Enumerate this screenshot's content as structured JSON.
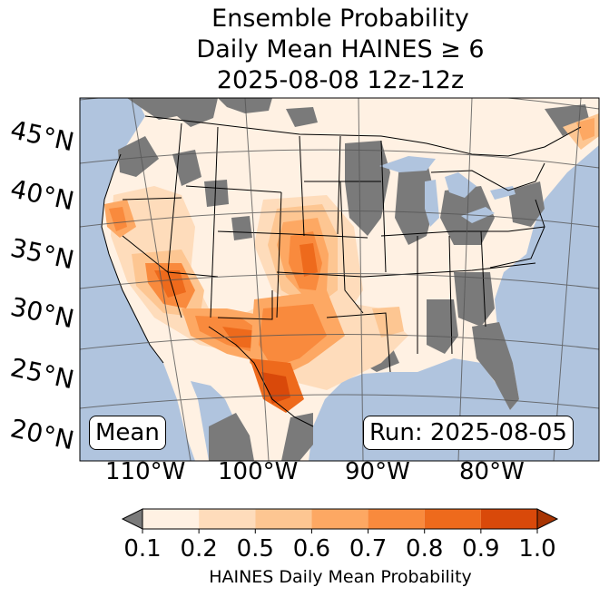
{
  "title": {
    "line1": "Ensemble Probability",
    "line2": "Daily Mean HAINES ≥ 6",
    "line3": "2025-08-08 12z-12z"
  },
  "map": {
    "lat_labels": [
      "45°N",
      "40°N",
      "35°N",
      "30°N",
      "25°N",
      "20°N"
    ],
    "lon_labels": [
      "110°W",
      "100°W",
      "90°W",
      "80°W"
    ],
    "stat_label": "Mean",
    "run_label": "Run: 2025-08-05",
    "colors": {
      "ocean": "#b0c4de",
      "missing": "#7a7a7a",
      "land_low": "#fff1e3"
    }
  },
  "colorbar": {
    "ticks": [
      "0.1",
      "0.2",
      "0.5",
      "0.6",
      "0.7",
      "0.8",
      "0.9",
      "1.0"
    ],
    "colors": [
      "#fff1e3",
      "#fedcbb",
      "#fdc692",
      "#fda863",
      "#f98a3d",
      "#ee6a1c",
      "#d9490a"
    ],
    "under_color": "#7a7a7a",
    "over_color": "#a83503",
    "label": "HAINES Daily Mean Probability"
  }
}
